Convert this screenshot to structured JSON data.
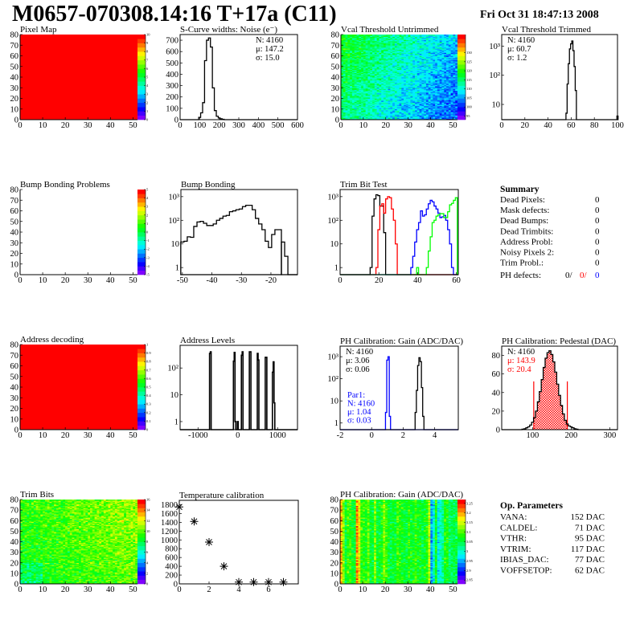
{
  "header": {
    "title": "M0657-070308.14:16 T+17a (C11)",
    "date": "Fri Oct 31 18:47:13 2008"
  },
  "palette": {
    "low": "#7f00ff",
    "mid": "#00ff40",
    "high": "#ff0000"
  },
  "chart_data": [
    {
      "id": "pixel_map",
      "type": "heatmap",
      "title": "Pixel Map",
      "xlim": [
        0,
        52
      ],
      "ylim": [
        0,
        80
      ],
      "xticks": [
        0,
        10,
        20,
        30,
        40,
        50
      ],
      "yticks": [
        0,
        10,
        20,
        30,
        40,
        50,
        60,
        70,
        80
      ],
      "zlim": [
        0,
        10
      ],
      "zticks": [
        "0",
        "1",
        "2",
        "3",
        "4",
        "5",
        "6",
        "7",
        "8",
        "9",
        "10"
      ],
      "grid": [
        52,
        80
      ],
      "uniform_value": 10
    },
    {
      "id": "scurve",
      "type": "histogram",
      "title": "S-Curve widths: Noise (e⁻)",
      "xlim": [
        0,
        600
      ],
      "ylim": [
        0,
        750
      ],
      "xticks": [
        0,
        100,
        200,
        300,
        400,
        500,
        600
      ],
      "yticks": [
        0,
        100,
        200,
        300,
        400,
        500,
        600,
        700
      ],
      "bin_width": 10,
      "series": [
        {
          "color": "#000000",
          "x": [
            100,
            110,
            120,
            130,
            140,
            150,
            160,
            170,
            180,
            190,
            200,
            210,
            220
          ],
          "y": [
            20,
            60,
            150,
            520,
            700,
            720,
            640,
            280,
            80,
            30,
            15,
            8,
            3
          ]
        }
      ],
      "stats": [
        {
          "text": "N: 4160",
          "color": "#000000"
        },
        {
          "text": "μ: 147.2",
          "color": "#000000"
        },
        {
          "text": "σ: 15.0",
          "color": "#000000"
        }
      ],
      "stats_pos": "top-right"
    },
    {
      "id": "vcal_untrimmed",
      "type": "heatmap",
      "title": "Vcal Threshold Untrimmed",
      "xlim": [
        0,
        52
      ],
      "ylim": [
        0,
        80
      ],
      "xticks": [
        0,
        10,
        20,
        30,
        40,
        50
      ],
      "yticks": [
        0,
        10,
        20,
        30,
        40,
        50,
        60,
        70,
        80
      ],
      "zlim": [
        93,
        140
      ],
      "zticks": [
        "95",
        "100",
        "105",
        "110",
        "115",
        "120",
        "125",
        "130"
      ],
      "grid": [
        52,
        80
      ]
    },
    {
      "id": "vcal_trimmed",
      "type": "histogram",
      "title": "Vcal Threshold Trimmed",
      "xlim": [
        0,
        100
      ],
      "ylim": [
        3,
        2500
      ],
      "log_y": true,
      "xticks": [
        0,
        20,
        40,
        60,
        80,
        100
      ],
      "yticks": [
        10,
        100,
        1000
      ],
      "ytick_labels": [
        "10",
        "10²",
        "10³"
      ],
      "bin_width": 1,
      "series": [
        {
          "color": "#000000",
          "x": [
            56,
            57,
            58,
            59,
            60,
            61,
            62,
            63,
            64,
            100
          ],
          "y": [
            5,
            50,
            250,
            800,
            1200,
            1500,
            700,
            200,
            30,
            4
          ]
        }
      ],
      "stats": [
        {
          "text": "N: 4160",
          "color": "#000000"
        },
        {
          "text": "μ: 60.7",
          "color": "#000000"
        },
        {
          "text": "σ:  1.2",
          "color": "#000000"
        }
      ],
      "stats_pos": "top-left"
    },
    {
      "id": "bump_problems",
      "type": "heatmap",
      "title": "Bump Bonding Problems",
      "xlim": [
        0,
        52
      ],
      "ylim": [
        0,
        80
      ],
      "xticks": [
        0,
        10,
        20,
        30,
        40,
        50
      ],
      "yticks": [
        0,
        10,
        20,
        30,
        40,
        50,
        60,
        70,
        80
      ],
      "zlim": [
        -5,
        5
      ],
      "zticks": [
        "-5",
        "-4",
        "-3",
        "-2",
        "-1",
        "0",
        "1",
        "2",
        "3",
        "4",
        "5"
      ],
      "grid": [
        52,
        80
      ],
      "empty": true
    },
    {
      "id": "bump_bonding",
      "type": "histogram",
      "title": "Bump Bonding",
      "xlim": [
        -50.5,
        -11
      ],
      "ylim": [
        0.5,
        2000
      ],
      "log_y": true,
      "xticks": [
        -50,
        -40,
        -30,
        -20
      ],
      "yticks": [
        1,
        10,
        100,
        1000
      ],
      "ytick_labels": [
        "1",
        "10",
        "10²",
        "10³"
      ],
      "bin_width": 1.1,
      "series": [
        {
          "color": "#000000",
          "x": [
            -50,
            -48.9,
            -47.8,
            -46.7,
            -45.6,
            -44.5,
            -43.4,
            -42.3,
            -41.2,
            -40.1,
            -39,
            -37.9,
            -36.8,
            -35.7,
            -34.6,
            -33.5,
            -32.4,
            -31.3,
            -30.2,
            -29.1,
            -28,
            -26.9,
            -25.8,
            -24.7,
            -23.6,
            -22.5,
            -21.4,
            -20.3,
            -19.2,
            -18.1,
            -17
          ],
          "y": [
            12,
            13,
            20,
            19,
            55,
            85,
            90,
            75,
            60,
            60,
            70,
            100,
            120,
            150,
            160,
            230,
            250,
            280,
            300,
            380,
            430,
            430,
            280,
            120,
            70,
            40,
            13,
            7,
            25,
            40,
            40
          ]
        },
        {
          "color": "#000000",
          "x": [
            -15.9,
            -14.8
          ],
          "y": [
            12,
            3
          ]
        }
      ]
    },
    {
      "id": "trim_bit_test",
      "type": "histogram",
      "title": "Trim Bit Test",
      "xlim": [
        0,
        61
      ],
      "ylim": [
        0.5,
        2000
      ],
      "log_y": true,
      "xticks": [
        0,
        20,
        40,
        60
      ],
      "yticks": [
        1,
        10,
        100,
        1000
      ],
      "ytick_labels": [
        "1",
        "10",
        "10²",
        "10³"
      ],
      "bin_width": 1,
      "series": [
        {
          "color": "#000000",
          "x": [
            16,
            17,
            18,
            19,
            20,
            21,
            22,
            23
          ],
          "y": [
            1,
            150,
            800,
            1200,
            1100,
            400,
            400,
            30
          ]
        },
        {
          "color": "#ff0000",
          "x": [
            19,
            20,
            21,
            22,
            23,
            24,
            25,
            26,
            27,
            28,
            29
          ],
          "y": [
            1,
            40,
            400,
            500,
            200,
            800,
            1000,
            900,
            300,
            100,
            10
          ]
        },
        {
          "color": "#0000ff",
          "x": [
            37,
            38,
            39,
            40,
            41,
            42,
            43,
            44,
            45,
            46,
            47,
            48,
            49,
            50,
            51,
            52,
            53,
            54,
            55,
            56,
            57,
            58
          ],
          "y": [
            1,
            3,
            12,
            40,
            80,
            250,
            150,
            170,
            300,
            500,
            700,
            600,
            400,
            300,
            200,
            130,
            140,
            160,
            100,
            40,
            10,
            1
          ]
        },
        {
          "color": "#00ff00",
          "x": [
            40,
            45,
            46,
            47,
            48,
            49,
            50,
            51,
            52,
            53,
            54,
            55,
            56,
            57,
            58,
            59,
            60
          ],
          "y": [
            1,
            1,
            5,
            20,
            80,
            100,
            150,
            170,
            190,
            190,
            130,
            130,
            230,
            450,
            520,
            700,
            900
          ]
        }
      ]
    },
    {
      "id": "address_decoding",
      "type": "heatmap",
      "title": "Address decoding",
      "xlim": [
        0,
        52
      ],
      "ylim": [
        0,
        80
      ],
      "xticks": [
        0,
        10,
        20,
        30,
        40,
        50
      ],
      "yticks": [
        0,
        10,
        20,
        30,
        40,
        50,
        60,
        70,
        80
      ],
      "zlim": [
        0,
        1
      ],
      "zticks": [
        "0",
        "0.1",
        "0.2",
        "0.3",
        "0.4",
        "0.5",
        "0.6",
        "0.7",
        "0.8",
        "0.9",
        "1"
      ],
      "grid": [
        52,
        80
      ],
      "uniform_value": 1
    },
    {
      "id": "address_levels",
      "type": "histogram",
      "title": "Address Levels",
      "xlim": [
        -1450,
        1500
      ],
      "ylim": [
        0.5,
        700
      ],
      "log_y": true,
      "xticks": [
        -1000,
        0,
        1000
      ],
      "yticks": [
        1,
        10,
        100
      ],
      "ytick_labels": [
        "1",
        "10",
        "10²"
      ],
      "bin_width": 20,
      "series": [
        {
          "color": "#000000",
          "x": [
            -700,
            -680,
            -100,
            -80,
            -60,
            0,
            100,
            120,
            300,
            320,
            500,
            520,
            700,
            720,
            880,
            900,
            920
          ],
          "y": [
            350,
            400,
            180,
            380,
            1,
            1,
            300,
            400,
            400,
            400,
            350,
            200,
            250,
            250,
            70,
            170,
            5
          ]
        }
      ]
    },
    {
      "id": "ph_gain",
      "type": "histogram",
      "title": "PH Calibration: Gain (ADC/DAC)",
      "xlim": [
        -2,
        5.5
      ],
      "ylim": [
        0.5,
        3000
      ],
      "log_y": true,
      "xticks": [
        -2,
        0,
        2,
        4
      ],
      "yticks": [
        1,
        10,
        100,
        1000
      ],
      "ytick_labels": [
        "1",
        "10",
        "10²",
        "10³"
      ],
      "bin_width": 0.08,
      "series": [
        {
          "color": "#000000",
          "x": [
            2.8,
            2.88,
            2.96,
            3.04,
            3.12,
            3.2,
            3.28
          ],
          "y": [
            3,
            30,
            400,
            900,
            600,
            40,
            2
          ]
        },
        {
          "color": "#0000ff",
          "x": [
            0.92,
            1.0,
            1.08,
            1.16
          ],
          "y": [
            3,
            700,
            1000,
            2
          ]
        }
      ],
      "stats": [
        {
          "text": "N: 4160",
          "color": "#000000"
        },
        {
          "text": "μ: 3.06",
          "color": "#000000"
        },
        {
          "text": "σ: 0.06",
          "color": "#000000"
        }
      ],
      "stats2": [
        {
          "text": "Par1:",
          "color": "#0000ff"
        },
        {
          "text": "N: 4160",
          "color": "#0000ff"
        },
        {
          "text": "μ: 1.04",
          "color": "#0000ff"
        },
        {
          "text": "σ: 0.03",
          "color": "#0000ff"
        }
      ]
    },
    {
      "id": "ph_pedestal",
      "type": "histogram",
      "title": "PH Calibration: Pedestal (DAC)",
      "xlim": [
        20,
        320
      ],
      "ylim": [
        0,
        90
      ],
      "xticks": [
        100,
        200,
        300
      ],
      "yticks": [
        0,
        20,
        40,
        60,
        80
      ],
      "bin_width": 5,
      "series": [
        {
          "color": "#000000",
          "x": [
            75,
            80,
            85,
            90,
            95,
            100,
            105,
            110,
            115,
            120,
            125,
            130,
            135,
            140,
            145,
            150,
            155,
            160,
            165,
            170,
            175,
            180,
            185,
            190,
            195,
            200,
            205,
            210,
            215
          ],
          "y": [
            0.5,
            1,
            2,
            3,
            5,
            8,
            13,
            20,
            30,
            41,
            54,
            67,
            77,
            83,
            85,
            81,
            73,
            62,
            49,
            37,
            26,
            17,
            10,
            6,
            4,
            3,
            2,
            1,
            0.5
          ]
        }
      ],
      "fit_range": [
        103,
        190
      ],
      "fit_color": "#ff0000",
      "fit_line_height": 52,
      "stats": [
        {
          "text": "N: 4160",
          "color": "#000000"
        },
        {
          "text": "μ: 143.9",
          "color": "#ff0000"
        },
        {
          "text": "σ: 20.4",
          "color": "#ff0000"
        }
      ]
    },
    {
      "id": "trim_bits",
      "type": "heatmap",
      "title": "Trim Bits",
      "xlim": [
        0,
        52
      ],
      "ylim": [
        0,
        80
      ],
      "xticks": [
        0,
        10,
        20,
        30,
        40,
        50
      ],
      "yticks": [
        0,
        10,
        20,
        30,
        40,
        50,
        60,
        70,
        80
      ],
      "zlim": [
        0,
        16
      ],
      "zticks": [
        "0",
        "2",
        "4",
        "6",
        "8",
        "10",
        "12",
        "14",
        "16"
      ],
      "grid": [
        52,
        80
      ]
    },
    {
      "id": "temperature",
      "type": "scatter",
      "title": "Temperature calibration",
      "xlim": [
        0,
        8
      ],
      "ylim": [
        0,
        1900
      ],
      "xticks": [
        0,
        2,
        4,
        6
      ],
      "yticks": [
        0,
        200,
        400,
        600,
        800,
        1000,
        1200,
        1400,
        1600,
        1800
      ],
      "x": [
        0,
        1,
        2,
        3,
        4,
        5,
        6,
        7
      ],
      "y": [
        1750,
        1420,
        950,
        400,
        40,
        40,
        40,
        40
      ]
    },
    {
      "id": "ph_gain_map",
      "type": "heatmap",
      "title": "PH Calibration: Gain (ADC/DAC)",
      "xlim": [
        0,
        52
      ],
      "ylim": [
        0,
        80
      ],
      "xticks": [
        0,
        10,
        20,
        30,
        40,
        50
      ],
      "yticks": [
        0,
        10,
        20,
        30,
        40,
        50,
        60,
        70,
        80
      ],
      "zlim": [
        2.83,
        3.27
      ],
      "zticks": [
        "2.85",
        "2.9",
        "2.95",
        "3",
        "3.05",
        "3.1",
        "3.15",
        "3.2",
        "3.25"
      ],
      "grid": [
        52,
        80
      ]
    }
  ],
  "summary": {
    "title": "Summary",
    "rows": [
      {
        "label": "Dead Pixels:",
        "value": "0"
      },
      {
        "label": "Mask defects:",
        "value": "0"
      },
      {
        "label": "Dead Bumps:",
        "value": "0"
      },
      {
        "label": "Dead Trimbits:",
        "value": "0"
      },
      {
        "label": "Address Probl:",
        "value": "0"
      },
      {
        "label": "Noisy Pixels 2:",
        "value": "0"
      },
      {
        "label": "Trim Probl.:",
        "value": "0"
      }
    ],
    "ph_defects": {
      "label": "PH defects:",
      "v1": "0/",
      "v2": "0/",
      "v3": "0",
      "c2": "#ff0000",
      "c3": "#0000ff"
    }
  },
  "op_parameters": {
    "title": "Op. Parameters",
    "rows": [
      {
        "label": "VANA:",
        "value": "152 DAC"
      },
      {
        "label": "CALDEL:",
        "value": "71 DAC"
      },
      {
        "label": "VTHR:",
        "value": "95 DAC"
      },
      {
        "label": "VTRIM:",
        "value": "117 DAC"
      },
      {
        "label": "IBIAS_DAC:",
        "value": "77 DAC"
      },
      {
        "label": "VOFFSETOP:",
        "value": "62 DAC"
      }
    ]
  }
}
